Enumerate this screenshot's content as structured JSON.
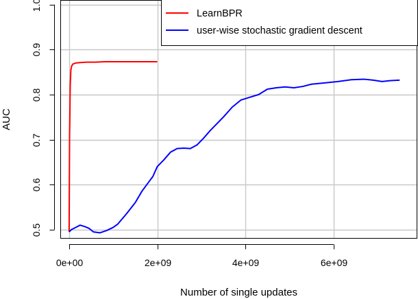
{
  "chart_data": {
    "type": "line",
    "title": "",
    "xlabel": "Number of single updates",
    "ylabel": "AUC",
    "xlim": [
      -200000000,
      7900000000
    ],
    "ylim": [
      0.48,
      1.01
    ],
    "x_ticks": [
      0,
      2000000000,
      4000000000,
      6000000000
    ],
    "x_tick_labels": [
      "0e+00",
      "2e+09",
      "4e+09",
      "6e+09"
    ],
    "y_ticks": [
      0.5,
      0.6,
      0.7,
      0.8,
      0.9,
      1.0
    ],
    "y_tick_labels": [
      "0.5",
      "0.6",
      "0.7",
      "0.8",
      "0.9",
      "1.0"
    ],
    "grid": true,
    "legend_position": "top-right",
    "series": [
      {
        "name": "LearnBPR",
        "color": "#ff0000",
        "points": [
          [
            0,
            0.495
          ],
          [
            10000000,
            0.7
          ],
          [
            25000000,
            0.82
          ],
          [
            40000000,
            0.855
          ],
          [
            60000000,
            0.864
          ],
          [
            90000000,
            0.868
          ],
          [
            150000000,
            0.87
          ],
          [
            250000000,
            0.871
          ],
          [
            400000000,
            0.872
          ],
          [
            600000000,
            0.872
          ],
          [
            800000000,
            0.873
          ],
          [
            1000000000,
            0.873
          ],
          [
            1200000000,
            0.873
          ],
          [
            1400000000,
            0.873
          ],
          [
            1600000000,
            0.873
          ],
          [
            1800000000,
            0.873
          ],
          [
            2000000000,
            0.873
          ]
        ]
      },
      {
        "name": "user-wise stochastic gradient descent",
        "color": "#0000ff",
        "points": [
          [
            0,
            0.495
          ],
          [
            50000000,
            0.5
          ],
          [
            150000000,
            0.505
          ],
          [
            250000000,
            0.51
          ],
          [
            350000000,
            0.507
          ],
          [
            450000000,
            0.503
          ],
          [
            550000000,
            0.495
          ],
          [
            700000000,
            0.493
          ],
          [
            850000000,
            0.498
          ],
          [
            1000000000,
            0.505
          ],
          [
            1100000000,
            0.512
          ],
          [
            1300000000,
            0.535
          ],
          [
            1500000000,
            0.56
          ],
          [
            1650000000,
            0.585
          ],
          [
            1800000000,
            0.605
          ],
          [
            1900000000,
            0.618
          ],
          [
            2000000000,
            0.64
          ],
          [
            2150000000,
            0.655
          ],
          [
            2300000000,
            0.672
          ],
          [
            2450000000,
            0.68
          ],
          [
            2600000000,
            0.681
          ],
          [
            2750000000,
            0.68
          ],
          [
            2900000000,
            0.688
          ],
          [
            3050000000,
            0.703
          ],
          [
            3200000000,
            0.72
          ],
          [
            3350000000,
            0.735
          ],
          [
            3500000000,
            0.75
          ],
          [
            3700000000,
            0.772
          ],
          [
            3900000000,
            0.788
          ],
          [
            4100000000,
            0.794
          ],
          [
            4300000000,
            0.8
          ],
          [
            4500000000,
            0.812
          ],
          [
            4700000000,
            0.815
          ],
          [
            4900000000,
            0.817
          ],
          [
            5100000000,
            0.815
          ],
          [
            5300000000,
            0.818
          ],
          [
            5500000000,
            0.823
          ],
          [
            5800000000,
            0.826
          ],
          [
            6100000000,
            0.829
          ],
          [
            6400000000,
            0.833
          ],
          [
            6700000000,
            0.834
          ],
          [
            6900000000,
            0.832
          ],
          [
            7100000000,
            0.829
          ],
          [
            7300000000,
            0.831
          ],
          [
            7500000000,
            0.832
          ]
        ]
      }
    ]
  }
}
